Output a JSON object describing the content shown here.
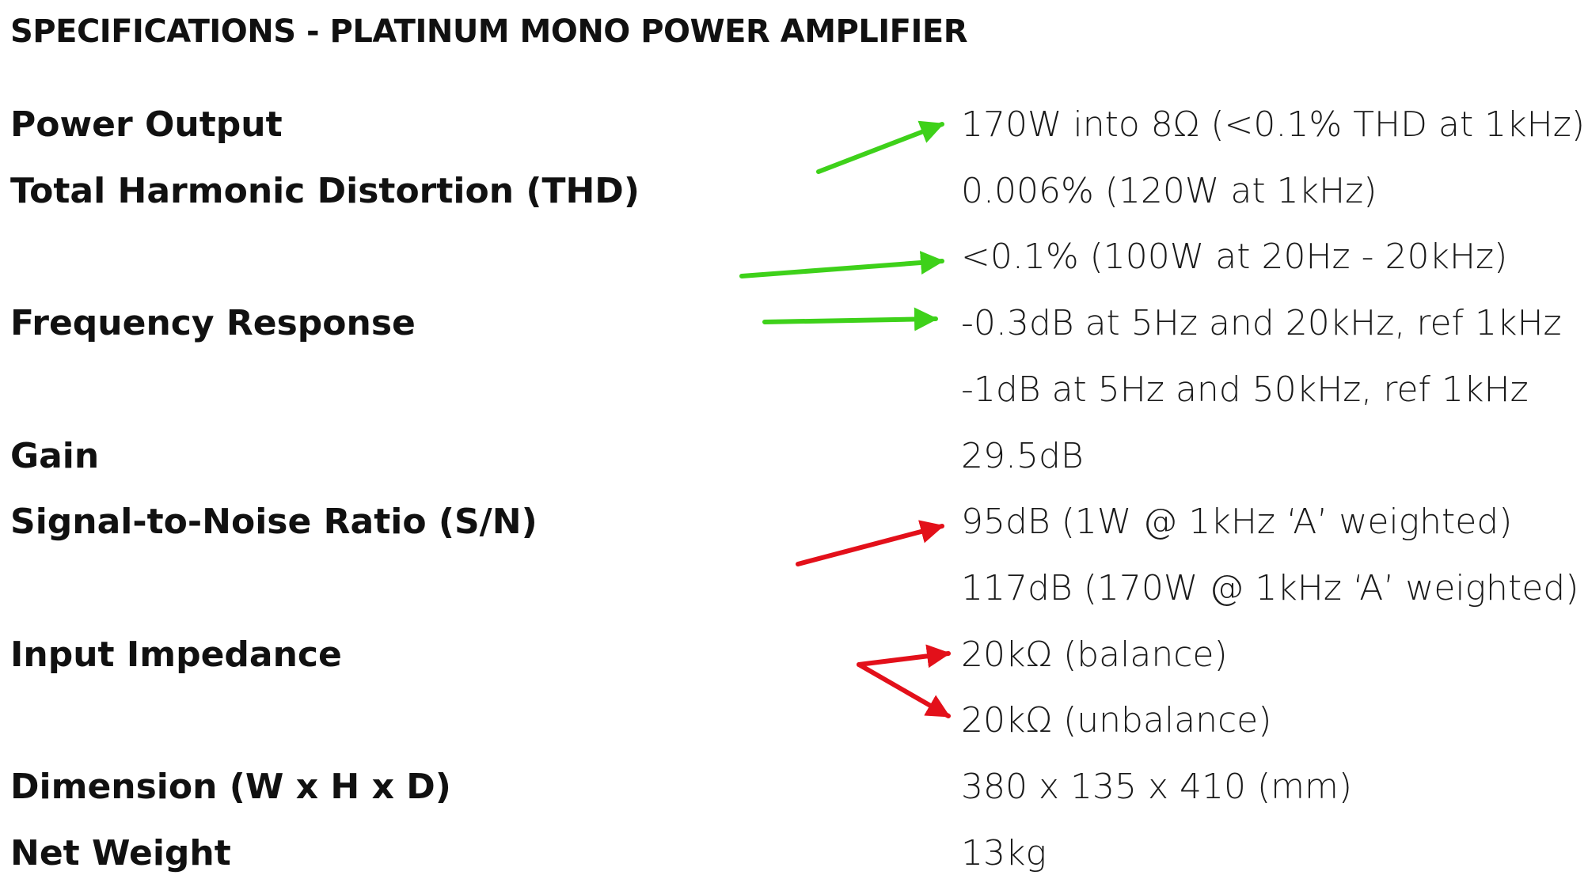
{
  "title": "SPECIFICATIONS - PLATINUM MONO POWER AMPLIFIER",
  "specs": [
    {
      "label": "Power Output",
      "values": [
        "170W into 8Ω (<0.1% THD at 1kHz)"
      ]
    },
    {
      "label": "Total Harmonic Distortion (THD)",
      "values": [
        "0.006% (120W at 1kHz)",
        "<0.1% (100W at 20Hz - 20kHz)"
      ]
    },
    {
      "label": "Frequency Response",
      "values": [
        "-0.3dB at 5Hz and 20kHz, ref 1kHz",
        "-1dB at 5Hz and 50kHz, ref 1kHz"
      ]
    },
    {
      "label": "Gain",
      "values": [
        "29.5dB"
      ]
    },
    {
      "label": "Signal-to-Noise Ratio (S/N)",
      "values": [
        "95dB (1W @ 1kHz ‘A’ weighted)",
        "117dB (170W @ 1kHz ‘A’ weighted)"
      ]
    },
    {
      "label": "Input Impedance",
      "values": [
        "20kΩ (balance)",
        "20kΩ (unbalance)"
      ]
    },
    {
      "label": "Dimension (W x H x D)",
      "values": [
        "380 x 135 x 410 (mm)"
      ]
    },
    {
      "label": "Net Weight",
      "values": [
        "13kg"
      ]
    }
  ]
}
